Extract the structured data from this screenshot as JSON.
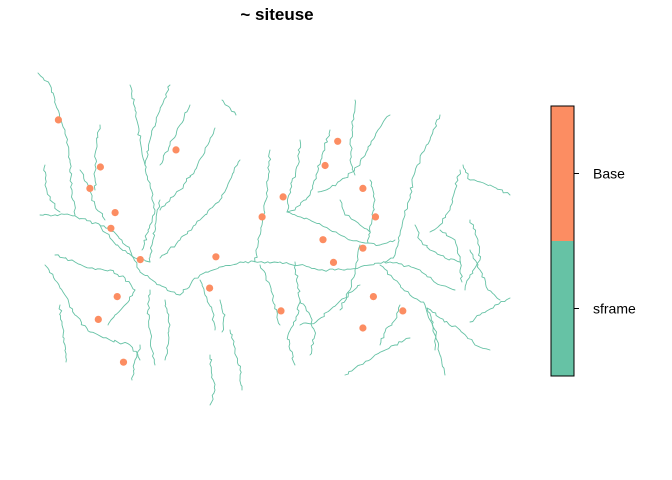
{
  "chart_data": {
    "type": "scatter",
    "title": "~ siteuse",
    "xlabel": "",
    "ylabel": "",
    "grid": false,
    "legend": {
      "placement": "right",
      "style": "colorbar",
      "entries": [
        {
          "label": "Base",
          "color": "#FC8D62"
        },
        {
          "label": "sframe",
          "color": "#66C2A5"
        }
      ]
    },
    "series": [
      {
        "name": "Base",
        "color": "#FC8D62",
        "points": [
          [
            0.02,
            0.93
          ],
          [
            0.12,
            0.765
          ],
          [
            0.3,
            0.825
          ],
          [
            0.095,
            0.69
          ],
          [
            0.155,
            0.605
          ],
          [
            0.145,
            0.55
          ],
          [
            0.215,
            0.44
          ],
          [
            0.16,
            0.31
          ],
          [
            0.115,
            0.23
          ],
          [
            0.175,
            0.08
          ],
          [
            0.395,
            0.45
          ],
          [
            0.38,
            0.34
          ],
          [
            0.505,
            0.59
          ],
          [
            0.555,
            0.66
          ],
          [
            0.655,
            0.77
          ],
          [
            0.685,
            0.855
          ],
          [
            0.745,
            0.69
          ],
          [
            0.775,
            0.59
          ],
          [
            0.65,
            0.51
          ],
          [
            0.675,
            0.43
          ],
          [
            0.745,
            0.48
          ],
          [
            0.77,
            0.31
          ],
          [
            0.84,
            0.26
          ],
          [
            0.745,
            0.2
          ],
          [
            0.55,
            0.26
          ]
        ]
      }
    ],
    "network_color": "#66C2A5"
  }
}
